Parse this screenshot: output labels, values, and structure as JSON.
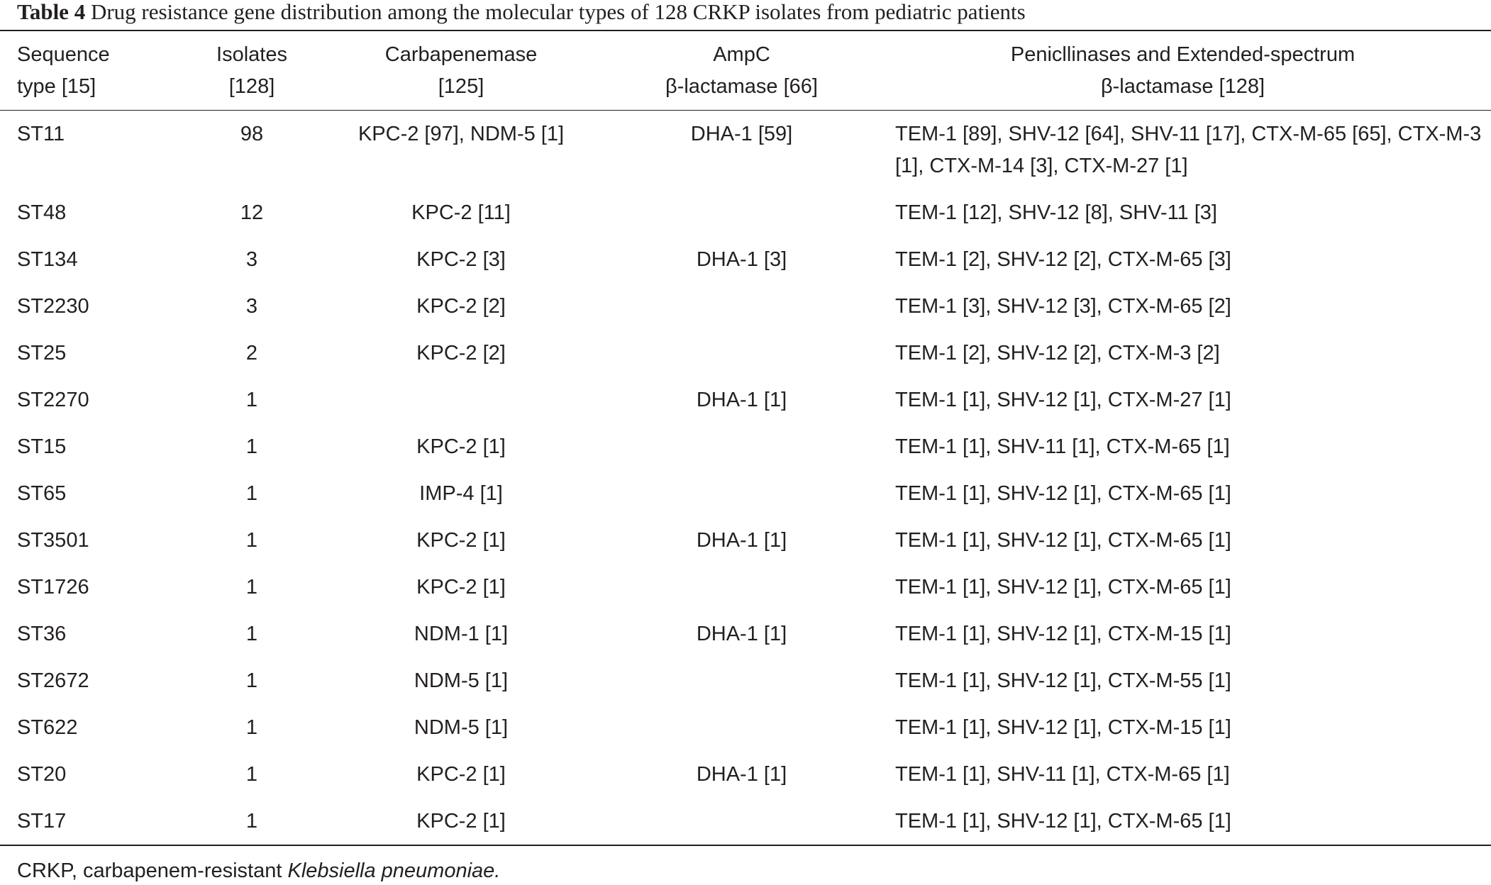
{
  "caption": {
    "label": "Table 4",
    "text": "Drug resistance gene distribution among the molecular types of 128 CRKP isolates from pediatric patients"
  },
  "table": {
    "header": [
      [
        "Sequence",
        "type [15]"
      ],
      [
        "Isolates",
        "[128]"
      ],
      [
        "Carbapenemase",
        "[125]"
      ],
      [
        "AmpC",
        "β-lactamase [66]"
      ],
      [
        "Penicllinases and Extended-spectrum",
        "β-lactamase [128]"
      ]
    ],
    "rows": [
      [
        "ST11",
        "98",
        "KPC-2 [97], NDM-5 [1]",
        "DHA-1 [59]",
        "TEM-1 [89], SHV-12 [64], SHV-11 [17], CTX-M-65 [65], CTX-M-3 [1], CTX-M-14 [3], CTX-M-27 [1]"
      ],
      [
        "ST48",
        "12",
        "KPC-2 [11]",
        null,
        "TEM-1 [12], SHV-12 [8], SHV-11 [3]"
      ],
      [
        "ST134",
        "3",
        "KPC-2 [3]",
        "DHA-1 [3]",
        "TEM-1 [2], SHV-12 [2], CTX-M-65 [3]"
      ],
      [
        "ST2230",
        "3",
        "KPC-2 [2]",
        null,
        "TEM-1 [3], SHV-12 [3], CTX-M-65 [2]"
      ],
      [
        "ST25",
        "2",
        "KPC-2 [2]",
        null,
        "TEM-1 [2], SHV-12 [2], CTX-M-3 [2]"
      ],
      [
        "ST2270",
        "1",
        null,
        "DHA-1 [1]",
        "TEM-1 [1], SHV-12 [1], CTX-M-27 [1]"
      ],
      [
        "ST15",
        "1",
        "KPC-2 [1]",
        null,
        "TEM-1 [1], SHV-11 [1], CTX-M-65 [1]"
      ],
      [
        "ST65",
        "1",
        "IMP-4 [1]",
        null,
        "TEM-1 [1], SHV-12 [1], CTX-M-65 [1]"
      ],
      [
        "ST3501",
        "1",
        "KPC-2 [1]",
        "DHA-1 [1]",
        "TEM-1 [1], SHV-12 [1], CTX-M-65 [1]"
      ],
      [
        "ST1726",
        "1",
        "KPC-2 [1]",
        null,
        "TEM-1 [1], SHV-12 [1], CTX-M-65 [1]"
      ],
      [
        "ST36",
        "1",
        "NDM-1 [1]",
        "DHA-1 [1]",
        "TEM-1 [1], SHV-12 [1], CTX-M-15 [1]"
      ],
      [
        "ST2672",
        "1",
        "NDM-5 [1]",
        null,
        "TEM-1 [1], SHV-12 [1], CTX-M-55 [1]"
      ],
      [
        "ST622",
        "1",
        "NDM-5 [1]",
        null,
        "TEM-1 [1], SHV-12 [1], CTX-M-15 [1]"
      ],
      [
        "ST20",
        "1",
        "KPC-2 [1]",
        "DHA-1 [1]",
        "TEM-1 [1], SHV-11 [1], CTX-M-65 [1]"
      ],
      [
        "ST17",
        "1",
        "KPC-2 [1]",
        null,
        "TEM-1 [1], SHV-12 [1], CTX-M-65 [1]"
      ]
    ]
  },
  "footnote": {
    "text": "CRKP, carbapenem-resistant ",
    "italic": "Klebsiella pneumoniae."
  }
}
